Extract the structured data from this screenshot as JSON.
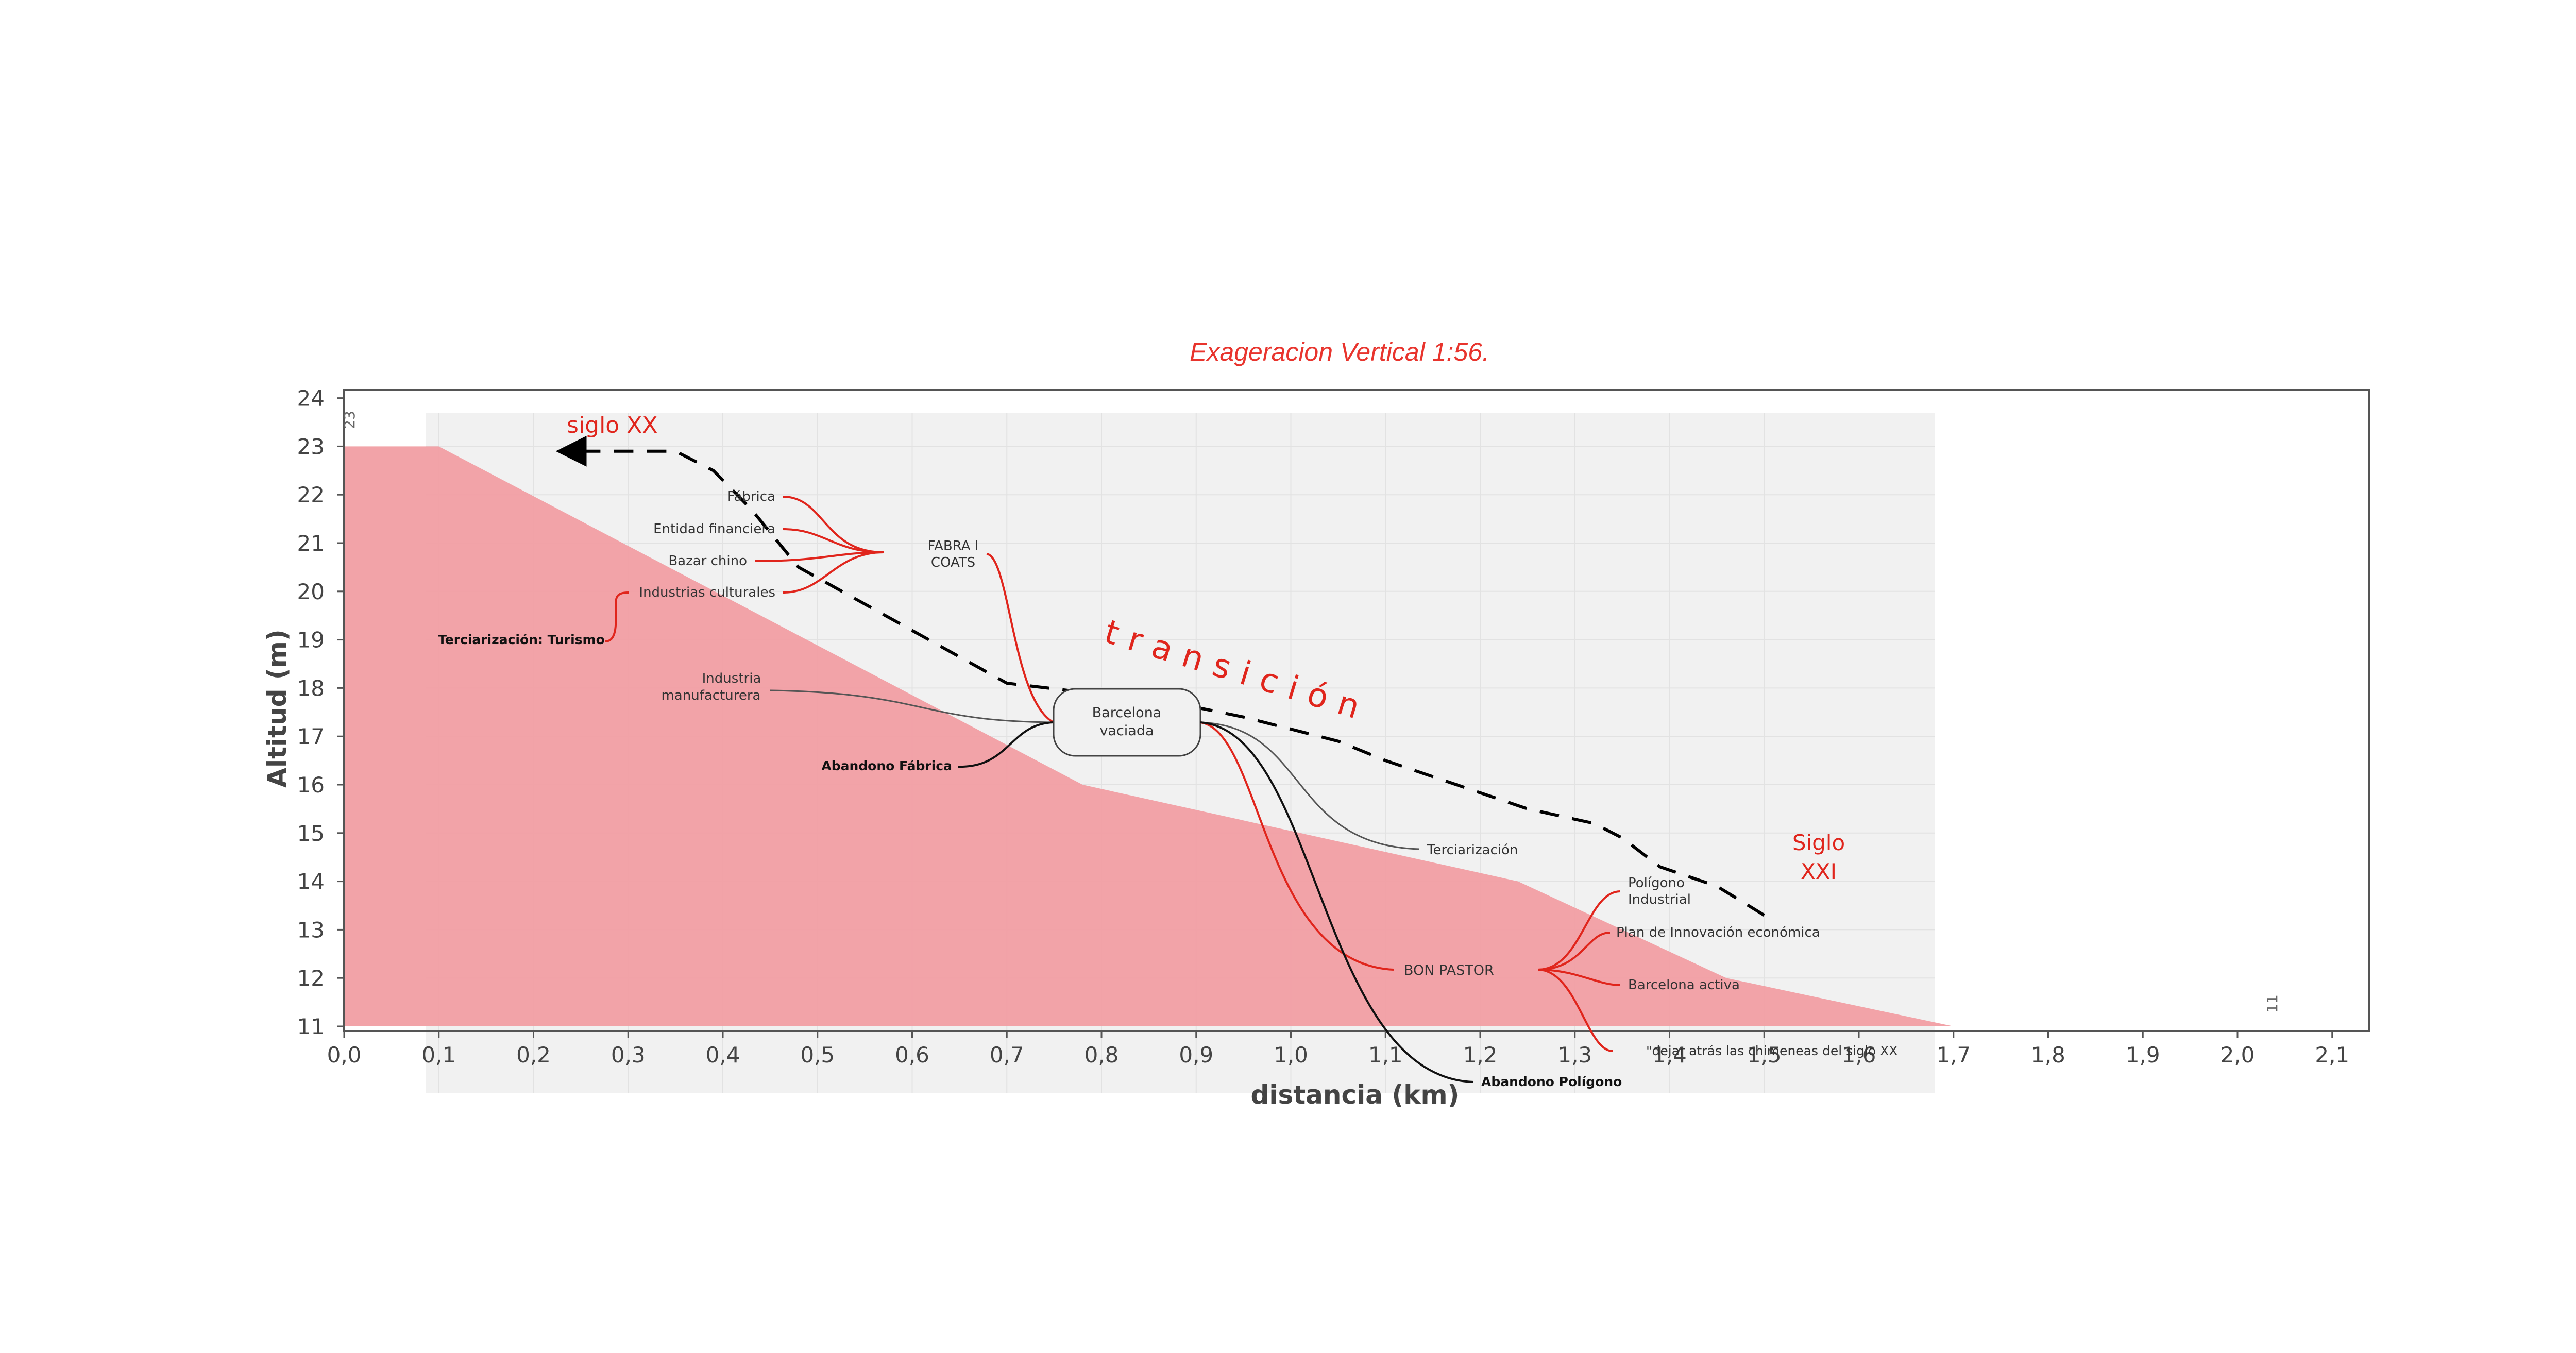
{
  "chart_data": {
    "type": "area",
    "title": "Exageracion Vertical 1:56.",
    "xlabel": "distancia (km)",
    "ylabel": "Altitud (m)",
    "xlim": [
      0.0,
      2.1
    ],
    "ylim": [
      11,
      24
    ],
    "x_ticks": [
      "0,0",
      "0,1",
      "0,2",
      "0,3",
      "0,4",
      "0,5",
      "0,6",
      "0,7",
      "0,8",
      "0,9",
      "1,0",
      "1,1",
      "1,2",
      "1,3",
      "1,4",
      "1,5",
      "1,6",
      "1,7",
      "1,8",
      "1,9",
      "2,0",
      "2,1"
    ],
    "y_ticks": [
      "11",
      "12",
      "13",
      "14",
      "15",
      "16",
      "17",
      "18",
      "19",
      "20",
      "21",
      "22",
      "23",
      "24"
    ],
    "profile": {
      "x": [
        0.0,
        0.1,
        0.78,
        1.24,
        1.46,
        1.7
      ],
      "y": [
        23,
        23,
        16,
        14,
        12,
        11
      ]
    },
    "edge_labels": {
      "start": "23",
      "end": "11"
    },
    "grid": true,
    "colors": {
      "title": "#e8342d",
      "fill": "#f3a0a4",
      "background_panel": "#f1f1f1",
      "annotation_red": "#e0251c"
    },
    "transition_path": {
      "x": [
        1.5,
        1.45,
        1.39,
        1.35,
        1.32,
        1.25,
        1.13,
        1.1,
        1.05,
        1.01,
        0.95,
        0.9,
        0.83,
        0.7,
        0.48,
        0.43,
        0.39,
        0.35,
        0.23
      ],
      "y": [
        13.3,
        13.9,
        14.3,
        14.9,
        15.2,
        15.5,
        16.3,
        16.5,
        16.9,
        17.1,
        17.4,
        17.6,
        17.8,
        18.1,
        20.5,
        21.7,
        22.5,
        22.9,
        22.9
      ]
    },
    "annotations": {
      "era_start": "siglo XX",
      "era_end": [
        "Siglo",
        "XXI"
      ],
      "transition": "transición",
      "left_group": [
        "Fábrica",
        "Entidad financiera",
        "Bazar chino",
        "Industrias culturales"
      ],
      "fabra": [
        "FABRA I",
        "COATS"
      ],
      "turismo": "Terciarización: Turismo",
      "industria": [
        "Industria",
        "manufacturera"
      ],
      "abandono_fabrica": "Abandono Fábrica",
      "center_box": [
        "Barcelona",
        "vaciada"
      ],
      "terciarizacion": "Terciarización",
      "bon_pastor": "BON PASTOR",
      "poligono": [
        "Polígono",
        "Industrial"
      ],
      "plan": "Plan de Innovación económica",
      "barcelona_activa": "Barcelona activa",
      "chimeneas": "\"dejar atrás  las chimeneas del siglo XX",
      "abandono_poligono": "Abandono Polígono"
    }
  }
}
